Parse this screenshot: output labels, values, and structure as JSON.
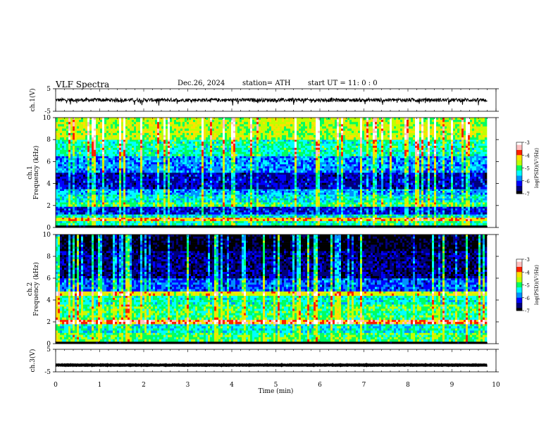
{
  "header": {
    "title": "VLF  Spectra",
    "date": "Dec.26, 2024",
    "station": "station= ATH",
    "start_ut": "start  UT  =    11: 0  : 0"
  },
  "chart_data": [
    {
      "type": "line",
      "panel": "ch1-waveform",
      "ylabel": "ch.1(V)",
      "ylim": [
        -5,
        5
      ],
      "y_ticks": [
        "5",
        "-5"
      ],
      "xlim": [
        0,
        10
      ],
      "x_data_end": 9.8,
      "series": [
        {
          "baseline": 0.0,
          "noise_amplitude": 0.8,
          "spikes_to": -2.5,
          "color": "#000000"
        }
      ]
    },
    {
      "type": "heatmap",
      "panel": "ch1-spectrogram",
      "ylabel": "ch.1\nFrequency  (kHz)",
      "ylim": [
        0,
        10
      ],
      "y_ticks": [
        "0",
        "2",
        "4",
        "6",
        "8",
        "10"
      ],
      "xlim": [
        0,
        10
      ],
      "x_data_end": 9.8,
      "zlabel": "log(PSD)(V²/Hz)",
      "zlim": [
        -7,
        -3
      ],
      "z_ticks": [
        "-3",
        "-4",
        "-5",
        "-6",
        "-7"
      ],
      "colormap": [
        "#000000",
        "#00007a",
        "#0000ff",
        "#0090ff",
        "#00ffff",
        "#00ff60",
        "#c0ff00",
        "#ffe000",
        "#ff2000",
        "#ffc0c0",
        "#ffffff"
      ],
      "bands": [
        {
          "f_low": 0.0,
          "f_high": 0.2,
          "level": -7.2
        },
        {
          "f_low": 0.2,
          "f_high": 0.6,
          "level": -5.2
        },
        {
          "f_low": 0.6,
          "f_high": 0.9,
          "level": -4.2
        },
        {
          "f_low": 0.9,
          "f_high": 1.2,
          "level": -5.4
        },
        {
          "f_low": 1.2,
          "f_high": 1.9,
          "level": -6.3
        },
        {
          "f_low": 1.9,
          "f_high": 2.3,
          "level": -5.0
        },
        {
          "f_low": 2.3,
          "f_high": 3.0,
          "level": -5.4
        },
        {
          "f_low": 3.0,
          "f_high": 3.5,
          "level": -5.7
        },
        {
          "f_low": 3.5,
          "f_high": 5.0,
          "level": -6.4
        },
        {
          "f_low": 5.0,
          "f_high": 6.5,
          "level": -5.8
        },
        {
          "f_low": 6.5,
          "f_high": 8.0,
          "level": -5.2
        },
        {
          "f_low": 8.0,
          "f_high": 10.0,
          "level": -4.6
        }
      ]
    },
    {
      "type": "heatmap",
      "panel": "ch2-spectrogram",
      "ylabel": "ch.2\nFrequency  (kHz)",
      "ylim": [
        0,
        10
      ],
      "y_ticks": [
        "0",
        "2",
        "4",
        "6",
        "8",
        "10"
      ],
      "xlim": [
        0,
        10
      ],
      "x_data_end": 9.8,
      "zlabel": "log(PSD)(V²/Hz)",
      "zlim": [
        -7,
        -3
      ],
      "z_ticks": [
        "-3",
        "-4",
        "-5",
        "-6",
        "-7"
      ],
      "colormap": [
        "#000000",
        "#00007a",
        "#0000ff",
        "#0090ff",
        "#00ffff",
        "#00ff60",
        "#c0ff00",
        "#ffe000",
        "#ff2000",
        "#ffc0c0",
        "#ffffff"
      ],
      "bands": [
        {
          "f_low": 0.0,
          "f_high": 0.2,
          "level": -7.2
        },
        {
          "f_low": 0.2,
          "f_high": 1.0,
          "level": -5.0
        },
        {
          "f_low": 1.0,
          "f_high": 1.8,
          "level": -5.4
        },
        {
          "f_low": 1.8,
          "f_high": 2.2,
          "level": -3.8
        },
        {
          "f_low": 2.2,
          "f_high": 3.6,
          "level": -5.0
        },
        {
          "f_low": 3.6,
          "f_high": 4.4,
          "level": -5.3
        },
        {
          "f_low": 4.4,
          "f_high": 4.8,
          "level": -4.4
        },
        {
          "f_low": 4.8,
          "f_high": 6.0,
          "level": -6.0
        },
        {
          "f_low": 6.0,
          "f_high": 8.5,
          "level": -6.6
        },
        {
          "f_low": 8.5,
          "f_high": 10.0,
          "level": -7.0
        }
      ]
    },
    {
      "type": "line",
      "panel": "ch3-waveform",
      "ylabel": "ch.3(V)",
      "ylim": [
        -5,
        5
      ],
      "y_ticks": [
        "5",
        "-5"
      ],
      "xlim": [
        0,
        10
      ],
      "x_data_end": 9.8,
      "xlabel": "Time  (min)",
      "x_ticks": [
        "0",
        "1",
        "2",
        "3",
        "4",
        "5",
        "6",
        "7",
        "8",
        "9",
        "10"
      ],
      "series": [
        {
          "baseline": -2.0,
          "noise_amplitude": 0.1,
          "color": "#000000"
        }
      ]
    }
  ]
}
